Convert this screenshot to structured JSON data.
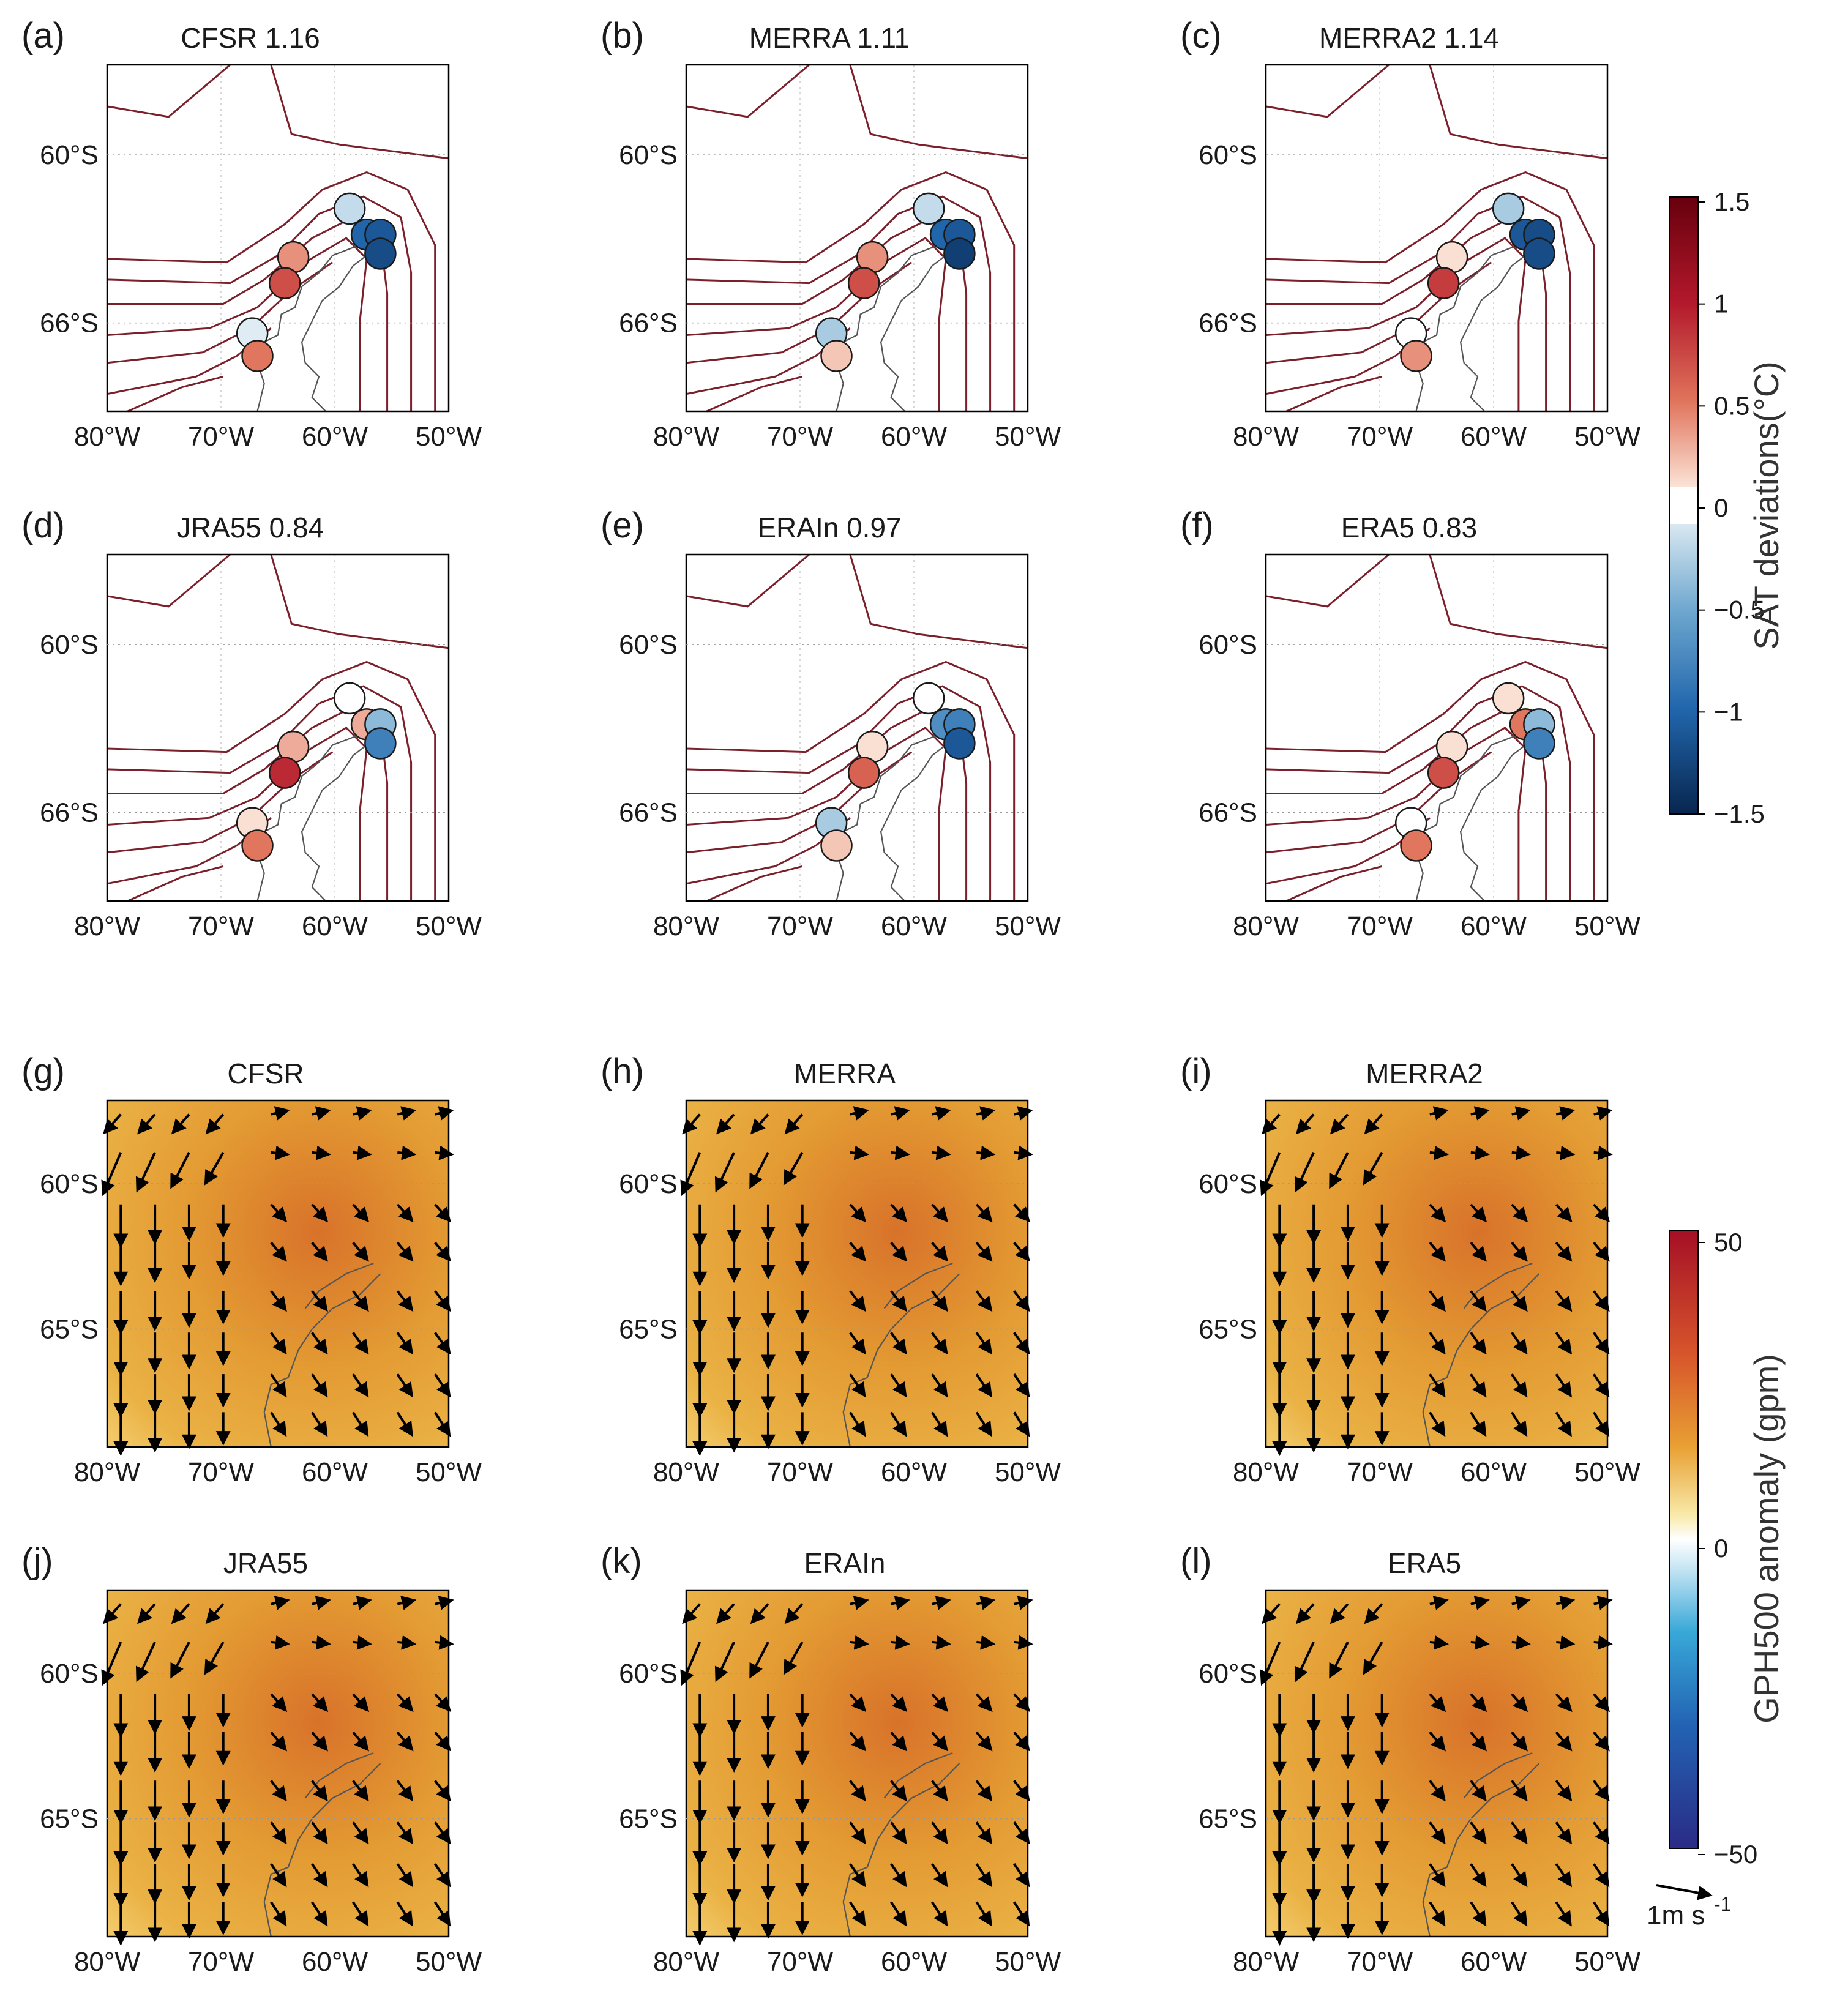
{
  "figure": {
    "x_ticks": [
      "80°W",
      "70°W",
      "60°W",
      "50°W"
    ],
    "sat_lat_ticks": [
      "60°S",
      "66°S"
    ],
    "gph_lat_ticks": [
      "60°S",
      "65°S"
    ]
  },
  "sat_panels": [
    {
      "label": "(a)",
      "title": "CFSR  1.16",
      "station_values": [
        -0.2,
        -1.0,
        -1.1,
        -1.2,
        0.4,
        0.7,
        -0.1,
        0.5
      ]
    },
    {
      "label": "(b)",
      "title": "MERRA  1.11",
      "station_values": [
        -0.2,
        -1.0,
        -1.1,
        -1.3,
        0.4,
        0.7,
        -0.3,
        0.2
      ]
    },
    {
      "label": "(c)",
      "title": "MERRA2  1.14",
      "station_values": [
        -0.3,
        -1.1,
        -1.2,
        -1.2,
        0.1,
        0.8,
        0.0,
        0.4
      ]
    },
    {
      "label": "(d)",
      "title": "JRA55  0.84",
      "station_values": [
        0.0,
        0.3,
        -0.4,
        -0.8,
        0.3,
        0.9,
        0.1,
        0.5
      ]
    },
    {
      "label": "(e)",
      "title": "ERAIn  0.97",
      "station_values": [
        0.0,
        -0.7,
        -0.8,
        -1.1,
        0.1,
        0.6,
        -0.3,
        0.2
      ]
    },
    {
      "label": "(f)",
      "title": "ERA5  0.83",
      "station_values": [
        0.1,
        0.5,
        -0.4,
        -0.8,
        0.1,
        0.7,
        0.0,
        0.5
      ]
    }
  ],
  "gph_panels": [
    {
      "label": "(g)",
      "title": "CFSR"
    },
    {
      "label": "(h)",
      "title": "MERRA"
    },
    {
      "label": "(i)",
      "title": "MERRA2"
    },
    {
      "label": "(j)",
      "title": "JRA55"
    },
    {
      "label": "(k)",
      "title": "ERAIn"
    },
    {
      "label": "(l)",
      "title": "ERA5"
    }
  ],
  "sat_colorbar": {
    "label": "SAT deviations(°C)",
    "ticks": [
      "1.5",
      "1",
      "0.5",
      "0",
      "−0.5",
      "−1",
      "−1.5"
    ],
    "range": [
      -1.5,
      1.5
    ]
  },
  "gph_colorbar": {
    "label": "GPH500 anomaly (gpm)",
    "ticks": [
      "50",
      "0",
      "−50"
    ],
    "range": [
      -50,
      50
    ]
  },
  "wind_reference": {
    "label": "1m s"
  },
  "colors": {
    "contour": "#7b1f2b",
    "field_bg": "#e39a32",
    "field_center": "#d8722a",
    "field_edge": "#f2c968"
  }
}
